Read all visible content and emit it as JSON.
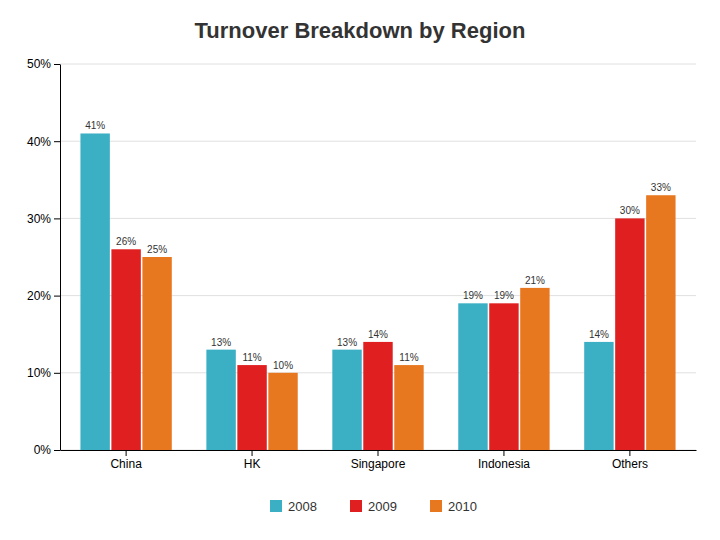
{
  "chart_data": {
    "type": "bar",
    "title": "Turnover Breakdown by Region",
    "categories": [
      "China",
      "HK",
      "Singapore",
      "Indonesia",
      "Others"
    ],
    "series": [
      {
        "name": "2008",
        "color": "#3BAFC4",
        "values": [
          41,
          13,
          13,
          19,
          14
        ],
        "value_labels": [
          "41%",
          "13%",
          "13%",
          "19%",
          "14%"
        ]
      },
      {
        "name": "2009",
        "color": "#E02020",
        "values": [
          26,
          11,
          14,
          19,
          30
        ],
        "value_labels": [
          "26%",
          "11%",
          "14%",
          "19%",
          "30%"
        ]
      },
      {
        "name": "2010",
        "color": "#E87820",
        "values": [
          25,
          10,
          11,
          21,
          33
        ],
        "value_labels": [
          "25%",
          "10%",
          "11%",
          "21%",
          "33%"
        ]
      }
    ],
    "ylim": [
      0,
      50
    ],
    "yticks": [
      {
        "value": 0,
        "label": "0%"
      },
      {
        "value": 10,
        "label": "10%"
      },
      {
        "value": 20,
        "label": "20%"
      },
      {
        "value": 30,
        "label": "30%"
      },
      {
        "value": 40,
        "label": "40%"
      },
      {
        "value": 50,
        "label": "50%"
      }
    ],
    "grid": true,
    "data_labels": true,
    "legend": "bottom"
  }
}
